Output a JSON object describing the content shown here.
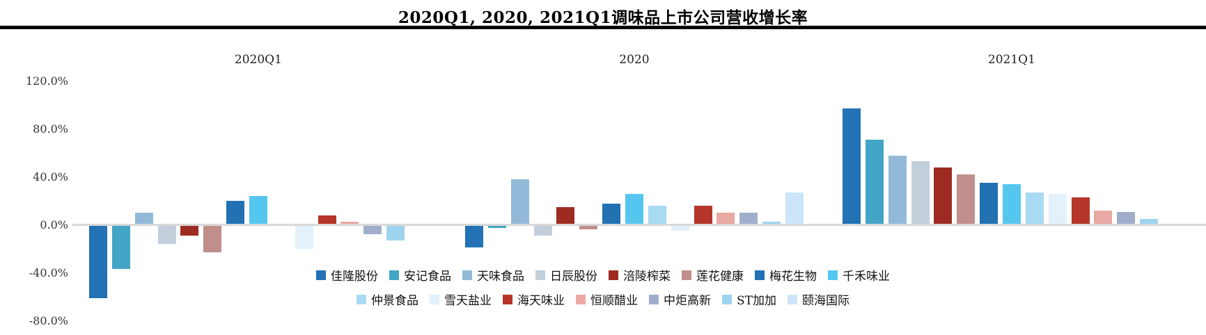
{
  "title": "2020Q1, 2020, 2021Q1调味品上市公司营收增长率",
  "chart_data": {
    "type": "bar",
    "title": "2020Q1, 2020, 2021Q1调味品上市公司营收增长率",
    "groups": [
      "2020Q1",
      "2020",
      "2021Q1"
    ],
    "ylabel": "",
    "ylim": [
      -80,
      120
    ],
    "grid": false,
    "legend_position": "bottom",
    "yticks": [
      {
        "label": "120.0%",
        "value": 120
      },
      {
        "label": "80.0%",
        "value": 80
      },
      {
        "label": "40.0%",
        "value": 40
      },
      {
        "label": "0.0%",
        "value": 0
      },
      {
        "label": "-40.0%",
        "value": -40
      },
      {
        "label": "-80.0%",
        "value": -80
      }
    ],
    "value_unit": "percent",
    "series": [
      {
        "name": "佳隆股份",
        "color": "#2272B5",
        "values": [
          -60,
          -18,
          96
        ]
      },
      {
        "name": "安记食品",
        "color": "#43A5C5",
        "values": [
          -36,
          -2,
          70
        ]
      },
      {
        "name": "天味食品",
        "color": "#92BAD8",
        "values": [
          9,
          37,
          57
        ]
      },
      {
        "name": "日辰股份",
        "color": "#C2CEDA",
        "values": [
          -15,
          -8,
          52
        ]
      },
      {
        "name": "涪陵榨菜",
        "color": "#9E2B22",
        "values": [
          -8,
          14,
          47
        ]
      },
      {
        "name": "莲花健康",
        "color": "#C08E8B",
        "values": [
          -22,
          -3,
          41
        ]
      },
      {
        "name": "梅花生物",
        "color": "#2171B3",
        "values": [
          19,
          17,
          34
        ]
      },
      {
        "name": "千禾味业",
        "color": "#55C7EE",
        "values": [
          23,
          25,
          33
        ]
      },
      {
        "name": "仲景食品",
        "color": "#A9DAF3",
        "values": [
          null,
          15,
          26
        ]
      },
      {
        "name": "雪天盐业",
        "color": "#E3F1FC",
        "values": [
          -19,
          -4,
          25
        ]
      },
      {
        "name": "海天味业",
        "color": "#B5352A",
        "values": [
          7,
          15,
          22
        ]
      },
      {
        "name": "恒顺醋业",
        "color": "#E9A8A3",
        "values": [
          2,
          9,
          11
        ]
      },
      {
        "name": "中炬高新",
        "color": "#A0AECB",
        "values": [
          -7,
          9,
          10
        ]
      },
      {
        "name": "ST加加",
        "color": "#9FD4F0",
        "values": [
          -12,
          2,
          4
        ]
      },
      {
        "name": "颐海国际",
        "color": "#CBE6F9",
        "values": [
          null,
          26,
          null
        ]
      }
    ]
  }
}
